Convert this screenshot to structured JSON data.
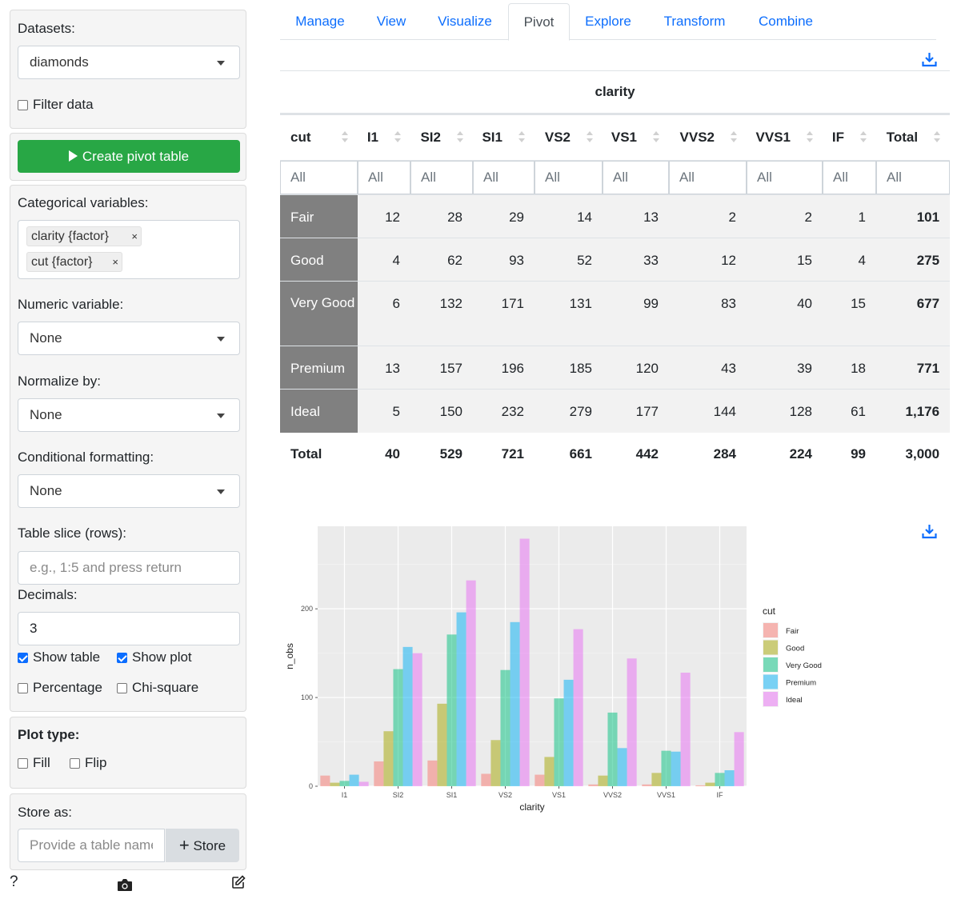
{
  "sidebar": {
    "datasets_label": "Datasets:",
    "dataset_value": "diamonds",
    "filter_label": "Filter data",
    "create_button": "Create pivot table",
    "categorical_label": "Categorical variables:",
    "categorical_selected": [
      "clarity {factor}",
      "cut {factor}"
    ],
    "chip_remove": "×",
    "numeric_label": "Numeric variable:",
    "numeric_value": "None",
    "normalize_label": "Normalize by:",
    "normalize_value": "None",
    "cond_label": "Conditional formatting:",
    "cond_value": "None",
    "slice_label": "Table slice (rows):",
    "slice_placeholder": "e.g., 1:5 and press return",
    "decimals_label": "Decimals:",
    "decimals_value": "3",
    "show_table": "Show table",
    "show_plot": "Show plot",
    "percentage": "Percentage",
    "chi_square": "Chi-square",
    "plot_type_label": "Plot type:",
    "fill": "Fill",
    "flip": "Flip",
    "store_label": "Store as:",
    "store_placeholder": "Provide a table name",
    "store_button": "Store",
    "store_plus": "+",
    "help": "?"
  },
  "tabs": [
    "Manage",
    "View",
    "Visualize",
    "Pivot",
    "Explore",
    "Transform",
    "Combine"
  ],
  "active_tab": "Pivot",
  "table": {
    "caption": "clarity",
    "headers": [
      "cut",
      "I1",
      "SI2",
      "SI1",
      "VS2",
      "VS1",
      "VVS2",
      "VVS1",
      "IF",
      "Total"
    ],
    "filter_placeholder": "All",
    "rows": [
      {
        "label": "Fair",
        "values": [
          "12",
          "28",
          "29",
          "14",
          "13",
          "2",
          "2",
          "1"
        ],
        "total": "101"
      },
      {
        "label": "Good",
        "values": [
          "4",
          "62",
          "93",
          "52",
          "33",
          "12",
          "15",
          "4"
        ],
        "total": "275"
      },
      {
        "label": "Very Good",
        "values": [
          "6",
          "132",
          "171",
          "131",
          "99",
          "83",
          "40",
          "15"
        ],
        "total": "677"
      },
      {
        "label": "Premium",
        "values": [
          "13",
          "157",
          "196",
          "185",
          "120",
          "43",
          "39",
          "18"
        ],
        "total": "771"
      },
      {
        "label": "Ideal",
        "values": [
          "5",
          "150",
          "232",
          "279",
          "177",
          "144",
          "128",
          "61"
        ],
        "total": "1,176"
      }
    ],
    "total_row": {
      "label": "Total",
      "values": [
        "40",
        "529",
        "721",
        "661",
        "442",
        "284",
        "224",
        "99",
        "3,000"
      ]
    }
  },
  "colors": {
    "accent": "#0d6efd",
    "green": "#28a745",
    "row_header": "#808080",
    "panel_bg": "#ebebeb"
  },
  "chart_data": {
    "type": "bar",
    "categories": [
      "I1",
      "SI2",
      "SI1",
      "VS2",
      "VS1",
      "VVS2",
      "VVS1",
      "IF"
    ],
    "series": [
      {
        "name": "Fair",
        "color": "#F8766D",
        "values": [
          12,
          28,
          29,
          14,
          13,
          2,
          2,
          1
        ]
      },
      {
        "name": "Good",
        "color": "#A3A500",
        "values": [
          4,
          62,
          93,
          52,
          33,
          12,
          15,
          4
        ]
      },
      {
        "name": "Very Good",
        "color": "#00BF7D",
        "values": [
          6,
          132,
          171,
          131,
          99,
          83,
          40,
          15
        ]
      },
      {
        "name": "Premium",
        "color": "#00B0F6",
        "values": [
          13,
          157,
          196,
          185,
          120,
          43,
          39,
          18
        ]
      },
      {
        "name": "Ideal",
        "color": "#E76BF3",
        "values": [
          5,
          150,
          232,
          279,
          177,
          144,
          128,
          61
        ]
      }
    ],
    "xlabel": "clarity",
    "ylabel": "n_obs",
    "yticks": [
      0,
      100,
      200
    ],
    "ylim": [
      0,
      293
    ],
    "legend_title": "cut",
    "legend_position": "right",
    "grid": true,
    "bar_opacity": 0.5
  }
}
